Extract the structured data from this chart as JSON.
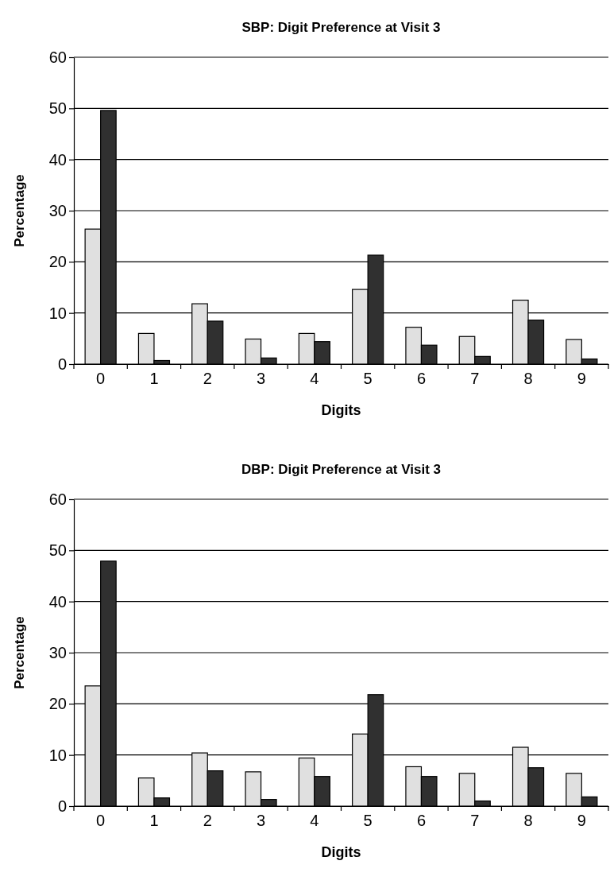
{
  "chart_data": [
    {
      "type": "bar",
      "title": "SBP: Digit Preference at Visit 3",
      "xlabel": "Digits",
      "ylabel": "Percentage",
      "categories": [
        "0",
        "1",
        "2",
        "3",
        "4",
        "5",
        "6",
        "7",
        "8",
        "9"
      ],
      "series": [
        {
          "color": "#e0e0e0",
          "values": [
            26.4,
            6.0,
            11.8,
            4.9,
            6.0,
            14.6,
            7.2,
            5.4,
            12.5,
            4.8
          ]
        },
        {
          "color": "#303030",
          "values": [
            49.6,
            0.7,
            8.4,
            1.2,
            4.4,
            21.3,
            3.7,
            1.5,
            8.6,
            1.0
          ]
        }
      ],
      "ylim": [
        0,
        60
      ],
      "yticks": [
        0,
        10,
        20,
        30,
        40,
        50,
        60
      ],
      "grid": "y",
      "legend": false
    },
    {
      "type": "bar",
      "title": "DBP: Digit Preference at Visit 3",
      "xlabel": "Digits",
      "ylabel": "Percentage",
      "categories": [
        "0",
        "1",
        "2",
        "3",
        "4",
        "5",
        "6",
        "7",
        "8",
        "9"
      ],
      "series": [
        {
          "color": "#e0e0e0",
          "values": [
            23.5,
            5.5,
            10.4,
            6.7,
            9.4,
            14.1,
            7.7,
            6.4,
            11.5,
            6.4
          ]
        },
        {
          "color": "#303030",
          "values": [
            47.9,
            1.6,
            6.9,
            1.3,
            5.8,
            21.8,
            5.8,
            1.0,
            7.5,
            1.8
          ]
        }
      ],
      "ylim": [
        0,
        60
      ],
      "yticks": [
        0,
        10,
        20,
        30,
        40,
        50,
        60
      ],
      "grid": "y",
      "legend": false
    }
  ]
}
